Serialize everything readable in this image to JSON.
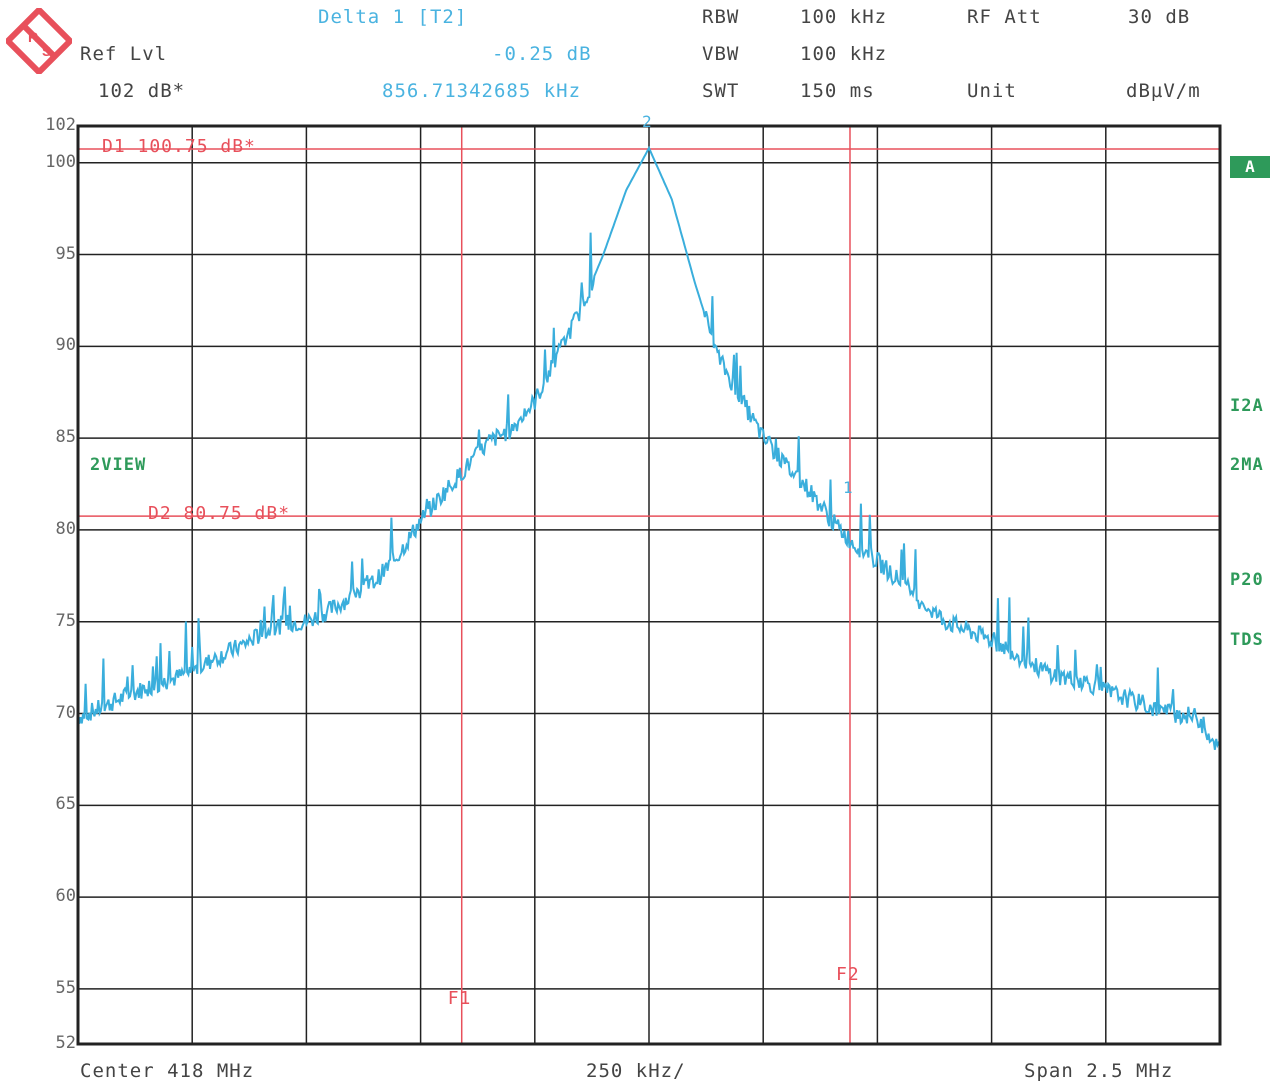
{
  "header": {
    "marker_title": "Delta 1 [T2]",
    "ref_lvl_label": "Ref Lvl",
    "ref_lvl_value": "102 dB*",
    "delta_level": "-0.25 dB",
    "delta_freq": "856.71342685 kHz",
    "rbw_label": "RBW",
    "rbw_value": "100 kHz",
    "vbw_label": "VBW",
    "vbw_value": "100 kHz",
    "swt_label": "SWT",
    "swt_value": "150 ms",
    "rf_att_label": "RF Att",
    "rf_att_value": "30 dB",
    "unit_label": "Unit",
    "unit_value": "dBµV/m"
  },
  "logo": {
    "icon": "rohde-schwarz-logo-icon",
    "letters": "R S"
  },
  "side_labels": {
    "left": "2VIEW",
    "badge": "A",
    "right": [
      "I2A",
      "2MA",
      "P20",
      "TDS"
    ]
  },
  "footer": {
    "center": "Center 418 MHz",
    "div": "250 kHz/",
    "span": "Span 2.5 MHz"
  },
  "colors": {
    "trace": "#3aaedc",
    "marker": "#e8505b",
    "grid": "#222222",
    "status_green": "#2e9a5a"
  },
  "chart_data": {
    "type": "line",
    "title": "",
    "xlabel": "",
    "ylabel": "",
    "x_unit": "MHz",
    "xlim": [
      416.75,
      419.25
    ],
    "ylim": [
      52,
      102
    ],
    "ytick_labels": [
      "102",
      "100",
      "95",
      "90",
      "85",
      "80",
      "75",
      "70",
      "65",
      "60",
      "55",
      "52"
    ],
    "ytick_values": [
      102,
      100,
      95,
      90,
      85,
      80,
      75,
      70,
      65,
      60,
      55,
      52
    ],
    "grid": true,
    "series": [
      {
        "x": [
          416.75,
          416.8,
          416.85,
          416.9,
          416.95,
          417.0,
          417.05,
          417.1,
          417.15,
          417.2,
          417.25,
          417.3,
          417.35,
          417.4,
          417.45,
          417.5,
          417.55,
          417.6,
          417.65,
          417.7,
          417.75,
          417.8,
          417.85,
          417.9,
          417.95,
          418.0,
          418.05,
          418.1,
          418.15,
          418.2,
          418.25,
          418.3,
          418.35,
          418.4,
          418.45,
          418.5,
          418.55,
          418.6,
          418.65,
          418.7,
          418.75,
          418.8,
          418.85,
          418.9,
          418.95,
          419.0,
          419.05,
          419.1,
          419.15,
          419.2,
          419.25
        ],
        "y": [
          69.8,
          70.3,
          70.9,
          71.4,
          71.8,
          72.3,
          73.0,
          73.6,
          74.3,
          74.9,
          75.0,
          75.6,
          76.4,
          77.2,
          78.6,
          80.5,
          82.0,
          83.4,
          84.8,
          85.5,
          87.0,
          89.5,
          92.0,
          95.0,
          98.5,
          100.8,
          98.0,
          93.5,
          89.5,
          87.2,
          85.0,
          83.5,
          82.2,
          80.5,
          79.2,
          78.3,
          77.2,
          76.0,
          75.0,
          74.5,
          74.0,
          73.3,
          72.5,
          72.0,
          71.8,
          71.2,
          70.8,
          70.3,
          70.0,
          69.8,
          68.0
        ]
      }
    ],
    "markers": [
      {
        "label": "D1 100.75 dB*",
        "level": 100.75
      },
      {
        "label": "D2 80.75 dB*",
        "level": 80.75
      }
    ],
    "freq_lines": [
      {
        "label": "F1",
        "x": 417.59
      },
      {
        "label": "F2",
        "x": 418.44
      }
    ],
    "peak_marker": "2",
    "delta_marker": "1"
  }
}
